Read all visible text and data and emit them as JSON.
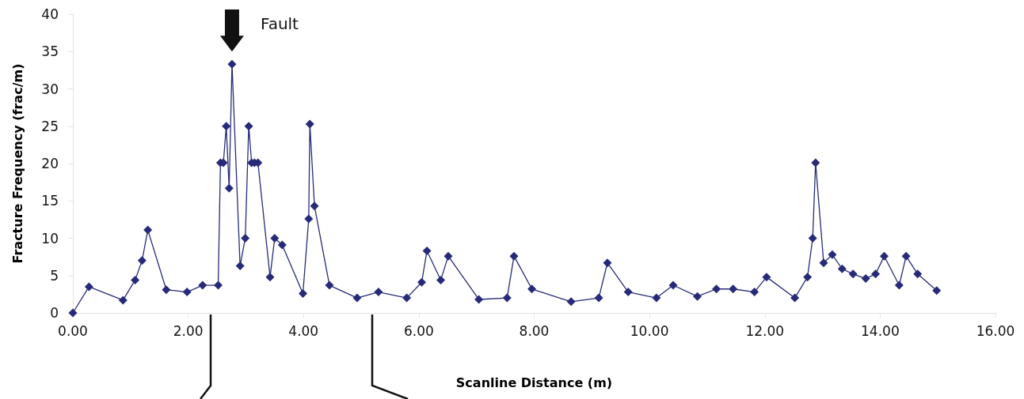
{
  "chart_data": {
    "type": "line",
    "xlabel": "Scanline Distance (m)",
    "ylabel": "Fracture Frequency (frac/m)",
    "annotations": [
      {
        "text": "Fault",
        "x": 2.76,
        "y": 33.3
      }
    ],
    "xlim": [
      0,
      16
    ],
    "xticks": [
      {
        "value": 0,
        "label": "0.00"
      },
      {
        "value": 2,
        "label": "2.00"
      },
      {
        "value": 4,
        "label": "4.00"
      },
      {
        "value": 6,
        "label": "6.00"
      },
      {
        "value": 8,
        "label": "8.00"
      },
      {
        "value": 10,
        "label": "10.00"
      },
      {
        "value": 12,
        "label": "12.00"
      },
      {
        "value": 14,
        "label": "14.00"
      },
      {
        "value": 16,
        "label": "16.00"
      }
    ],
    "ylim": [
      0,
      40
    ],
    "yticks": [
      0,
      5,
      10,
      15,
      20,
      25,
      30,
      35,
      40
    ],
    "grid": false,
    "marker": "diamond",
    "line_style": "solid",
    "series": [
      {
        "color": "#262a78",
        "x": [
          0.0,
          0.28,
          0.87,
          1.08,
          1.2,
          1.3,
          1.62,
          1.98,
          2.25,
          2.52,
          2.56,
          2.61,
          2.66,
          2.71,
          2.76,
          2.9,
          2.99,
          3.05,
          3.1,
          3.15,
          3.21,
          3.42,
          3.5,
          3.63,
          3.99,
          4.09,
          4.11,
          4.19,
          4.45,
          4.93,
          5.3,
          5.79,
          6.05,
          6.14,
          6.38,
          6.51,
          7.04,
          7.53,
          7.65,
          7.96,
          8.64,
          9.12,
          9.27,
          9.63,
          10.12,
          10.41,
          10.83,
          11.16,
          11.45,
          11.82,
          12.03,
          12.52,
          12.74,
          12.83,
          12.88,
          13.02,
          13.17,
          13.34,
          13.53,
          13.75,
          13.92,
          14.07,
          14.33,
          14.45,
          14.65,
          14.98
        ],
        "values": [
          0,
          3.5,
          1.7,
          4.4,
          7.0,
          11.1,
          3.1,
          2.8,
          3.7,
          3.7,
          20.1,
          20.1,
          25.0,
          16.7,
          33.3,
          6.3,
          10.0,
          25.0,
          20.1,
          20.1,
          20.1,
          4.8,
          10.0,
          9.1,
          2.6,
          12.6,
          25.3,
          14.3,
          3.7,
          2.0,
          2.8,
          2.0,
          4.1,
          8.3,
          4.4,
          7.6,
          1.8,
          2.0,
          7.6,
          3.2,
          1.5,
          2.0,
          6.7,
          2.8,
          2.0,
          3.7,
          2.2,
          3.2,
          3.2,
          2.8,
          4.8,
          2.0,
          4.8,
          10.0,
          20.1,
          6.7,
          7.8,
          5.9,
          5.2,
          4.6,
          5.2,
          7.6,
          3.7,
          7.6,
          5.2,
          3.0
        ]
      }
    ]
  }
}
